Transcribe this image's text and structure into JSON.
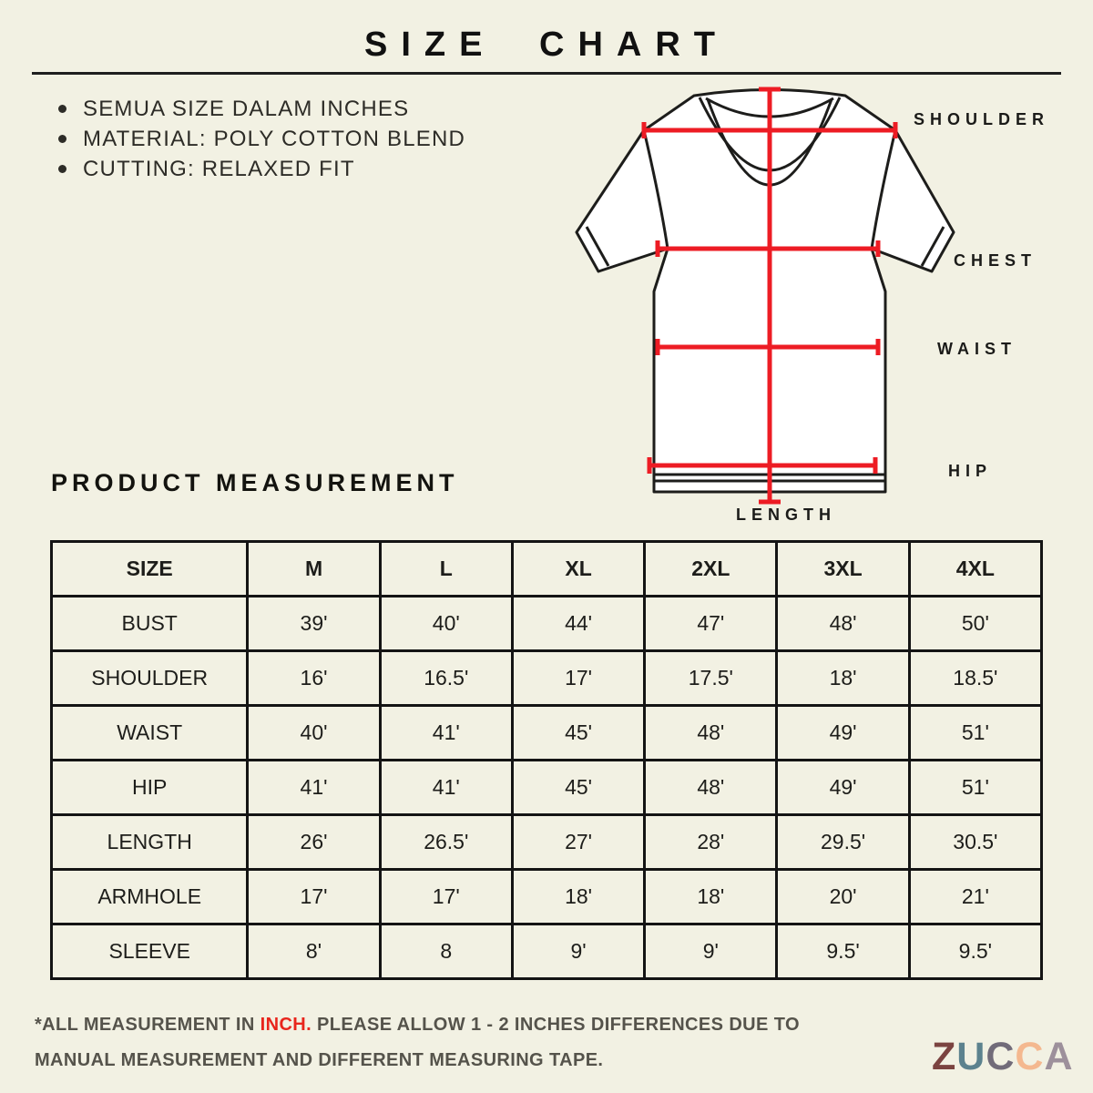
{
  "page": {
    "title": "SIZE CHART"
  },
  "notes": [
    "SEMUA SIZE DALAM INCHES",
    "MATERIAL: POLY COTTON BLEND",
    "CUTTING: RELAXED FIT"
  ],
  "diagram": {
    "labels": {
      "shoulder": "SHOULDER",
      "chest": "CHEST",
      "waist": "WAIST",
      "hip": "HIP",
      "length": "LENGTH"
    },
    "measure_line_color": "#ED1C24",
    "shirt_outline_color": "#1D1D1B"
  },
  "section": {
    "heading": "PRODUCT MEASUREMENT"
  },
  "table": {
    "headers": [
      "SIZE",
      "M",
      "L",
      "XL",
      "2XL",
      "3XL",
      "4XL"
    ],
    "rows": [
      {
        "label": "BUST",
        "cells": [
          "39'",
          "40'",
          "44'",
          "47'",
          "48'",
          "50'"
        ]
      },
      {
        "label": "SHOULDER",
        "cells": [
          "16'",
          "16.5'",
          "17'",
          "17.5'",
          "18'",
          "18.5'"
        ]
      },
      {
        "label": "WAIST",
        "cells": [
          "40'",
          "41'",
          "45'",
          "48'",
          "49'",
          "51'"
        ]
      },
      {
        "label": "HIP",
        "cells": [
          "41'",
          "41'",
          "45'",
          "48'",
          "49'",
          "51'"
        ]
      },
      {
        "label": "LENGTH",
        "cells": [
          "26'",
          "26.5'",
          "27'",
          "28'",
          "29.5'",
          "30.5'"
        ]
      },
      {
        "label": "ARMHOLE",
        "cells": [
          "17'",
          "17'",
          "18'",
          "18'",
          "20'",
          "21'"
        ]
      },
      {
        "label": "SLEEVE",
        "cells": [
          "8'",
          "8",
          "9'",
          "9'",
          "9.5'",
          "9.5'"
        ]
      }
    ]
  },
  "footnote": {
    "prefix": "*ALL MEASUREMENT IN ",
    "highlight": "INCH.",
    "highlight_color": "#E8251C",
    "suffix": " PLEASE ALLOW 1 - 2 INCHES DIFFERENCES DUE TO MANUAL MEASUREMENT AND DIFFERENT MEASURING TAPE."
  },
  "logo": {
    "name": "ZUCCA",
    "letters": [
      {
        "char": "Z",
        "color": "#7B4340"
      },
      {
        "char": "U",
        "color": "#5C828E"
      },
      {
        "char": "C",
        "color": "#716B79"
      },
      {
        "char": "C",
        "color": "#F4B88F"
      },
      {
        "char": "A",
        "color": "#9D909B"
      }
    ]
  },
  "colors": {
    "background": "#F2F1E3",
    "text": "#1C1C18",
    "table_border": "#141414"
  }
}
